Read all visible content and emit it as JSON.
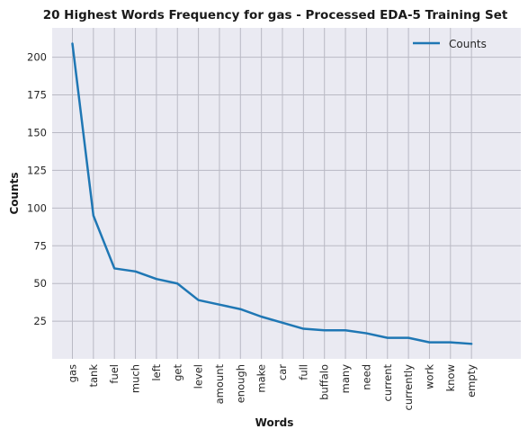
{
  "chart_data": {
    "type": "line",
    "title": "20 Highest Words Frequency for gas - Processed EDA-5 Training Set",
    "xlabel": "Words",
    "ylabel": "Counts",
    "categories": [
      "gas",
      "tank",
      "fuel",
      "much",
      "left",
      "get",
      "level",
      "amount",
      "enough",
      "make",
      "car",
      "full",
      "buffalo",
      "many",
      "need",
      "current",
      "currently",
      "work",
      "know",
      "empty"
    ],
    "series": [
      {
        "name": "Counts",
        "values": [
          209,
          95,
          60,
          58,
          53,
          50,
          39,
          36,
          33,
          28,
          24,
          20,
          19,
          19,
          17,
          14,
          14,
          11,
          11,
          10
        ],
        "color": "#1f77b4"
      }
    ],
    "ylim": [
      0.05,
      219.45
    ],
    "yticks": [
      25,
      50,
      75,
      100,
      125,
      150,
      175,
      200
    ],
    "grid": true,
    "legend": "top-right",
    "background": "#eaeaf2"
  }
}
